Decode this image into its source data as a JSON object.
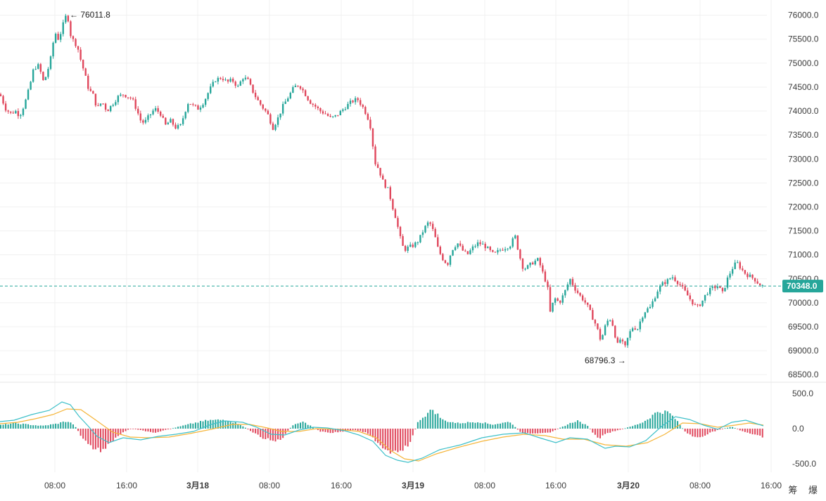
{
  "chart_data": [
    {
      "type": "candlestick",
      "title": "",
      "ylim": [
        68400,
        76200
      ],
      "y_ticks": [
        "76000.0",
        "75500.0",
        "75000.0",
        "74500.0",
        "74000.0",
        "73500.0",
        "73000.0",
        "72500.0",
        "72000.0",
        "71500.0",
        "71000.0",
        "70500.0",
        "70000.0",
        "69500.0",
        "69000.0",
        "68500.0"
      ],
      "current_price": "70348.0",
      "high_annotation": "76011.8",
      "low_annotation": "68796.3",
      "colors": {
        "up": "#26a69a",
        "down": "#e0475c",
        "price_line": "#26a69a",
        "grid": "#f0f0f0"
      },
      "close_path": [
        [
          0,
          74350
        ],
        [
          8,
          74050
        ],
        [
          15,
          73950
        ],
        [
          22,
          74000
        ],
        [
          28,
          73900
        ],
        [
          35,
          74150
        ],
        [
          42,
          74500
        ],
        [
          48,
          74900
        ],
        [
          55,
          74950
        ],
        [
          62,
          74600
        ],
        [
          67,
          74800
        ],
        [
          72,
          75100
        ],
        [
          78,
          75650
        ],
        [
          83,
          75500
        ],
        [
          88,
          75700
        ],
        [
          92,
          75950
        ],
        [
          96,
          76000
        ],
        [
          100,
          75600
        ],
        [
          105,
          75450
        ],
        [
          110,
          75350
        ],
        [
          115,
          75050
        ],
        [
          120,
          74800
        ],
        [
          126,
          74450
        ],
        [
          132,
          74350
        ],
        [
          138,
          74050
        ],
        [
          145,
          74200
        ],
        [
          152,
          74000
        ],
        [
          160,
          74150
        ],
        [
          168,
          74300
        ],
        [
          175,
          74350
        ],
        [
          182,
          74300
        ],
        [
          188,
          74250
        ],
        [
          195,
          74000
        ],
        [
          200,
          73800
        ],
        [
          205,
          73750
        ],
        [
          212,
          73900
        ],
        [
          220,
          74050
        ],
        [
          228,
          73950
        ],
        [
          235,
          73700
        ],
        [
          242,
          73800
        ],
        [
          250,
          73650
        ],
        [
          257,
          73700
        ],
        [
          262,
          73950
        ],
        [
          268,
          74200
        ],
        [
          275,
          74100
        ],
        [
          282,
          74050
        ],
        [
          290,
          74200
        ],
        [
          298,
          74450
        ],
        [
          306,
          74650
        ],
        [
          315,
          74700
        ],
        [
          323,
          74600
        ],
        [
          330,
          74650
        ],
        [
          338,
          74500
        ],
        [
          345,
          74700
        ],
        [
          352,
          74650
        ],
        [
          358,
          74450
        ],
        [
          365,
          74250
        ],
        [
          372,
          74100
        ],
        [
          380,
          73950
        ],
        [
          388,
          73650
        ],
        [
          395,
          73850
        ],
        [
          402,
          74100
        ],
        [
          410,
          74300
        ],
        [
          418,
          74500
        ],
        [
          425,
          74550
        ],
        [
          432,
          74400
        ],
        [
          440,
          74200
        ],
        [
          448,
          74100
        ],
        [
          455,
          74000
        ],
        [
          462,
          73950
        ],
        [
          470,
          73850
        ],
        [
          478,
          73900
        ],
        [
          485,
          74000
        ],
        [
          492,
          74100
        ],
        [
          500,
          74200
        ],
        [
          508,
          74250
        ],
        [
          515,
          74100
        ],
        [
          522,
          73900
        ],
        [
          528,
          73600
        ],
        [
          532,
          72950
        ],
        [
          538,
          72800
        ],
        [
          545,
          72500
        ],
        [
          552,
          72350
        ],
        [
          558,
          72000
        ],
        [
          563,
          71750
        ],
        [
          568,
          71400
        ],
        [
          574,
          71100
        ],
        [
          580,
          71150
        ],
        [
          588,
          71200
        ],
        [
          595,
          71300
        ],
        [
          603,
          71550
        ],
        [
          610,
          71700
        ],
        [
          617,
          71450
        ],
        [
          623,
          71100
        ],
        [
          630,
          70900
        ],
        [
          636,
          70800
        ],
        [
          642,
          71100
        ],
        [
          650,
          71250
        ],
        [
          657,
          71100
        ],
        [
          664,
          71000
        ],
        [
          672,
          71150
        ],
        [
          680,
          71250
        ],
        [
          688,
          71200
        ],
        [
          695,
          71100
        ],
        [
          702,
          71000
        ],
        [
          710,
          71100
        ],
        [
          718,
          71150
        ],
        [
          725,
          71200
        ],
        [
          732,
          71400
        ],
        [
          738,
          71000
        ],
        [
          744,
          70700
        ],
        [
          750,
          70750
        ],
        [
          758,
          70850
        ],
        [
          765,
          70900
        ],
        [
          772,
          70600
        ],
        [
          778,
          70350
        ],
        [
          782,
          69800
        ],
        [
          788,
          70100
        ],
        [
          795,
          70000
        ],
        [
          802,
          70200
        ],
        [
          810,
          70500
        ],
        [
          817,
          70300
        ],
        [
          824,
          70150
        ],
        [
          830,
          70050
        ],
        [
          836,
          69900
        ],
        [
          842,
          69700
        ],
        [
          848,
          69500
        ],
        [
          854,
          69200
        ],
        [
          860,
          69500
        ],
        [
          866,
          69700
        ],
        [
          872,
          69500
        ],
        [
          877,
          69100
        ],
        [
          882,
          69250
        ],
        [
          888,
          69050
        ],
        [
          894,
          69350
        ],
        [
          900,
          69500
        ],
        [
          906,
          69450
        ],
        [
          912,
          69700
        ],
        [
          918,
          69850
        ],
        [
          924,
          69900
        ],
        [
          930,
          70100
        ],
        [
          936,
          70300
        ],
        [
          942,
          70400
        ],
        [
          948,
          70450
        ],
        [
          955,
          70550
        ],
        [
          962,
          70450
        ],
        [
          968,
          70350
        ],
        [
          975,
          70200
        ],
        [
          982,
          70050
        ],
        [
          990,
          69900
        ],
        [
          997,
          70000
        ],
        [
          1004,
          70200
        ],
        [
          1012,
          70300
        ],
        [
          1020,
          70350
        ],
        [
          1027,
          70200
        ],
        [
          1034,
          70500
        ],
        [
          1040,
          70700
        ],
        [
          1047,
          70850
        ],
        [
          1054,
          70700
        ],
        [
          1060,
          70600
        ],
        [
          1066,
          70550
        ],
        [
          1072,
          70500
        ],
        [
          1078,
          70400
        ],
        [
          1084,
          70348
        ]
      ]
    },
    {
      "type": "macd",
      "ylim": [
        -620,
        620
      ],
      "y_ticks": [
        "500.0",
        "0.0",
        "-500.0"
      ],
      "colors": {
        "hist_up": "#26a69a",
        "hist_down": "#e0475c",
        "dif": "#3ec0c9",
        "dea": "#f5b53a"
      },
      "dif_path": [
        [
          0,
          100
        ],
        [
          20,
          120
        ],
        [
          45,
          200
        ],
        [
          70,
          260
        ],
        [
          88,
          380
        ],
        [
          100,
          340
        ],
        [
          112,
          180
        ],
        [
          125,
          40
        ],
        [
          138,
          -110
        ],
        [
          155,
          -200
        ],
        [
          175,
          -130
        ],
        [
          200,
          -160
        ],
        [
          225,
          -110
        ],
        [
          250,
          -80
        ],
        [
          275,
          -40
        ],
        [
          300,
          60
        ],
        [
          320,
          110
        ],
        [
          345,
          90
        ],
        [
          365,
          20
        ],
        [
          385,
          -80
        ],
        [
          405,
          -90
        ],
        [
          425,
          -20
        ],
        [
          445,
          20
        ],
        [
          465,
          10
        ],
        [
          490,
          -30
        ],
        [
          510,
          -90
        ],
        [
          530,
          -180
        ],
        [
          548,
          -380
        ],
        [
          565,
          -450
        ],
        [
          580,
          -480
        ],
        [
          600,
          -420
        ],
        [
          625,
          -300
        ],
        [
          655,
          -230
        ],
        [
          685,
          -130
        ],
        [
          715,
          -80
        ],
        [
          745,
          -60
        ],
        [
          770,
          -140
        ],
        [
          790,
          -200
        ],
        [
          810,
          -130
        ],
        [
          835,
          -150
        ],
        [
          860,
          -280
        ],
        [
          875,
          -250
        ],
        [
          895,
          -260
        ],
        [
          918,
          -170
        ],
        [
          940,
          30
        ],
        [
          960,
          170
        ],
        [
          980,
          130
        ],
        [
          1000,
          50
        ],
        [
          1020,
          -10
        ],
        [
          1040,
          90
        ],
        [
          1060,
          120
        ],
        [
          1085,
          40
        ]
      ],
      "dea_path": [
        [
          0,
          70
        ],
        [
          25,
          90
        ],
        [
          50,
          140
        ],
        [
          75,
          200
        ],
        [
          95,
          280
        ],
        [
          115,
          270
        ],
        [
          135,
          130
        ],
        [
          160,
          -50
        ],
        [
          185,
          -120
        ],
        [
          210,
          -130
        ],
        [
          240,
          -120
        ],
        [
          270,
          -70
        ],
        [
          300,
          -10
        ],
        [
          330,
          60
        ],
        [
          355,
          60
        ],
        [
          380,
          10
        ],
        [
          400,
          -40
        ],
        [
          425,
          -40
        ],
        [
          450,
          0
        ],
        [
          480,
          -10
        ],
        [
          510,
          -40
        ],
        [
          535,
          -130
        ],
        [
          555,
          -310
        ],
        [
          575,
          -430
        ],
        [
          595,
          -460
        ],
        [
          620,
          -360
        ],
        [
          650,
          -270
        ],
        [
          685,
          -180
        ],
        [
          715,
          -120
        ],
        [
          745,
          -80
        ],
        [
          775,
          -100
        ],
        [
          800,
          -150
        ],
        [
          830,
          -150
        ],
        [
          860,
          -230
        ],
        [
          890,
          -250
        ],
        [
          920,
          -200
        ],
        [
          945,
          -80
        ],
        [
          970,
          80
        ],
        [
          995,
          70
        ],
        [
          1020,
          20
        ],
        [
          1045,
          50
        ],
        [
          1065,
          80
        ],
        [
          1085,
          50
        ]
      ],
      "hist_path": [
        [
          0,
          50
        ],
        [
          20,
          80
        ],
        [
          40,
          60
        ],
        [
          60,
          40
        ],
        [
          80,
          70
        ],
        [
          95,
          110
        ],
        [
          105,
          60
        ],
        [
          115,
          -100
        ],
        [
          125,
          -220
        ],
        [
          135,
          -300
        ],
        [
          148,
          -320
        ],
        [
          165,
          -120
        ],
        [
          185,
          0
        ],
        [
          205,
          -30
        ],
        [
          220,
          -70
        ],
        [
          235,
          -20
        ],
        [
          255,
          30
        ],
        [
          275,
          80
        ],
        [
          295,
          120
        ],
        [
          320,
          130
        ],
        [
          340,
          70
        ],
        [
          360,
          -60
        ],
        [
          375,
          -140
        ],
        [
          390,
          -190
        ],
        [
          400,
          -150
        ],
        [
          415,
          40
        ],
        [
          430,
          100
        ],
        [
          440,
          50
        ],
        [
          455,
          -40
        ],
        [
          470,
          -60
        ],
        [
          490,
          -40
        ],
        [
          505,
          -20
        ],
        [
          520,
          -60
        ],
        [
          532,
          -150
        ],
        [
          545,
          -280
        ],
        [
          555,
          -330
        ],
        [
          570,
          -300
        ],
        [
          582,
          -240
        ],
        [
          595,
          120
        ],
        [
          605,
          200
        ],
        [
          615,
          280
        ],
        [
          630,
          120
        ],
        [
          650,
          80
        ],
        [
          680,
          100
        ],
        [
          700,
          60
        ],
        [
          725,
          100
        ],
        [
          740,
          -60
        ],
        [
          760,
          -80
        ],
        [
          780,
          -60
        ],
        [
          800,
          30
        ],
        [
          820,
          120
        ],
        [
          835,
          40
        ],
        [
          850,
          -150
        ],
        [
          865,
          -60
        ],
        [
          880,
          -20
        ],
        [
          900,
          40
        ],
        [
          915,
          100
        ],
        [
          935,
          250
        ],
        [
          950,
          240
        ],
        [
          960,
          140
        ],
        [
          975,
          -60
        ],
        [
          990,
          -150
        ],
        [
          1005,
          -80
        ],
        [
          1020,
          -20
        ],
        [
          1040,
          30
        ],
        [
          1060,
          -60
        ],
        [
          1085,
          -120
        ]
      ]
    }
  ],
  "x_axis": {
    "ticks": [
      "08:00",
      "16:00",
      "3月18",
      "08:00",
      "16:00",
      "3月19",
      "08:00",
      "16:00",
      "3月20",
      "08:00",
      "16:00"
    ],
    "bold": [
      false,
      false,
      true,
      false,
      false,
      true,
      false,
      false,
      true,
      false,
      false
    ]
  },
  "corner_label": "筹 爆"
}
